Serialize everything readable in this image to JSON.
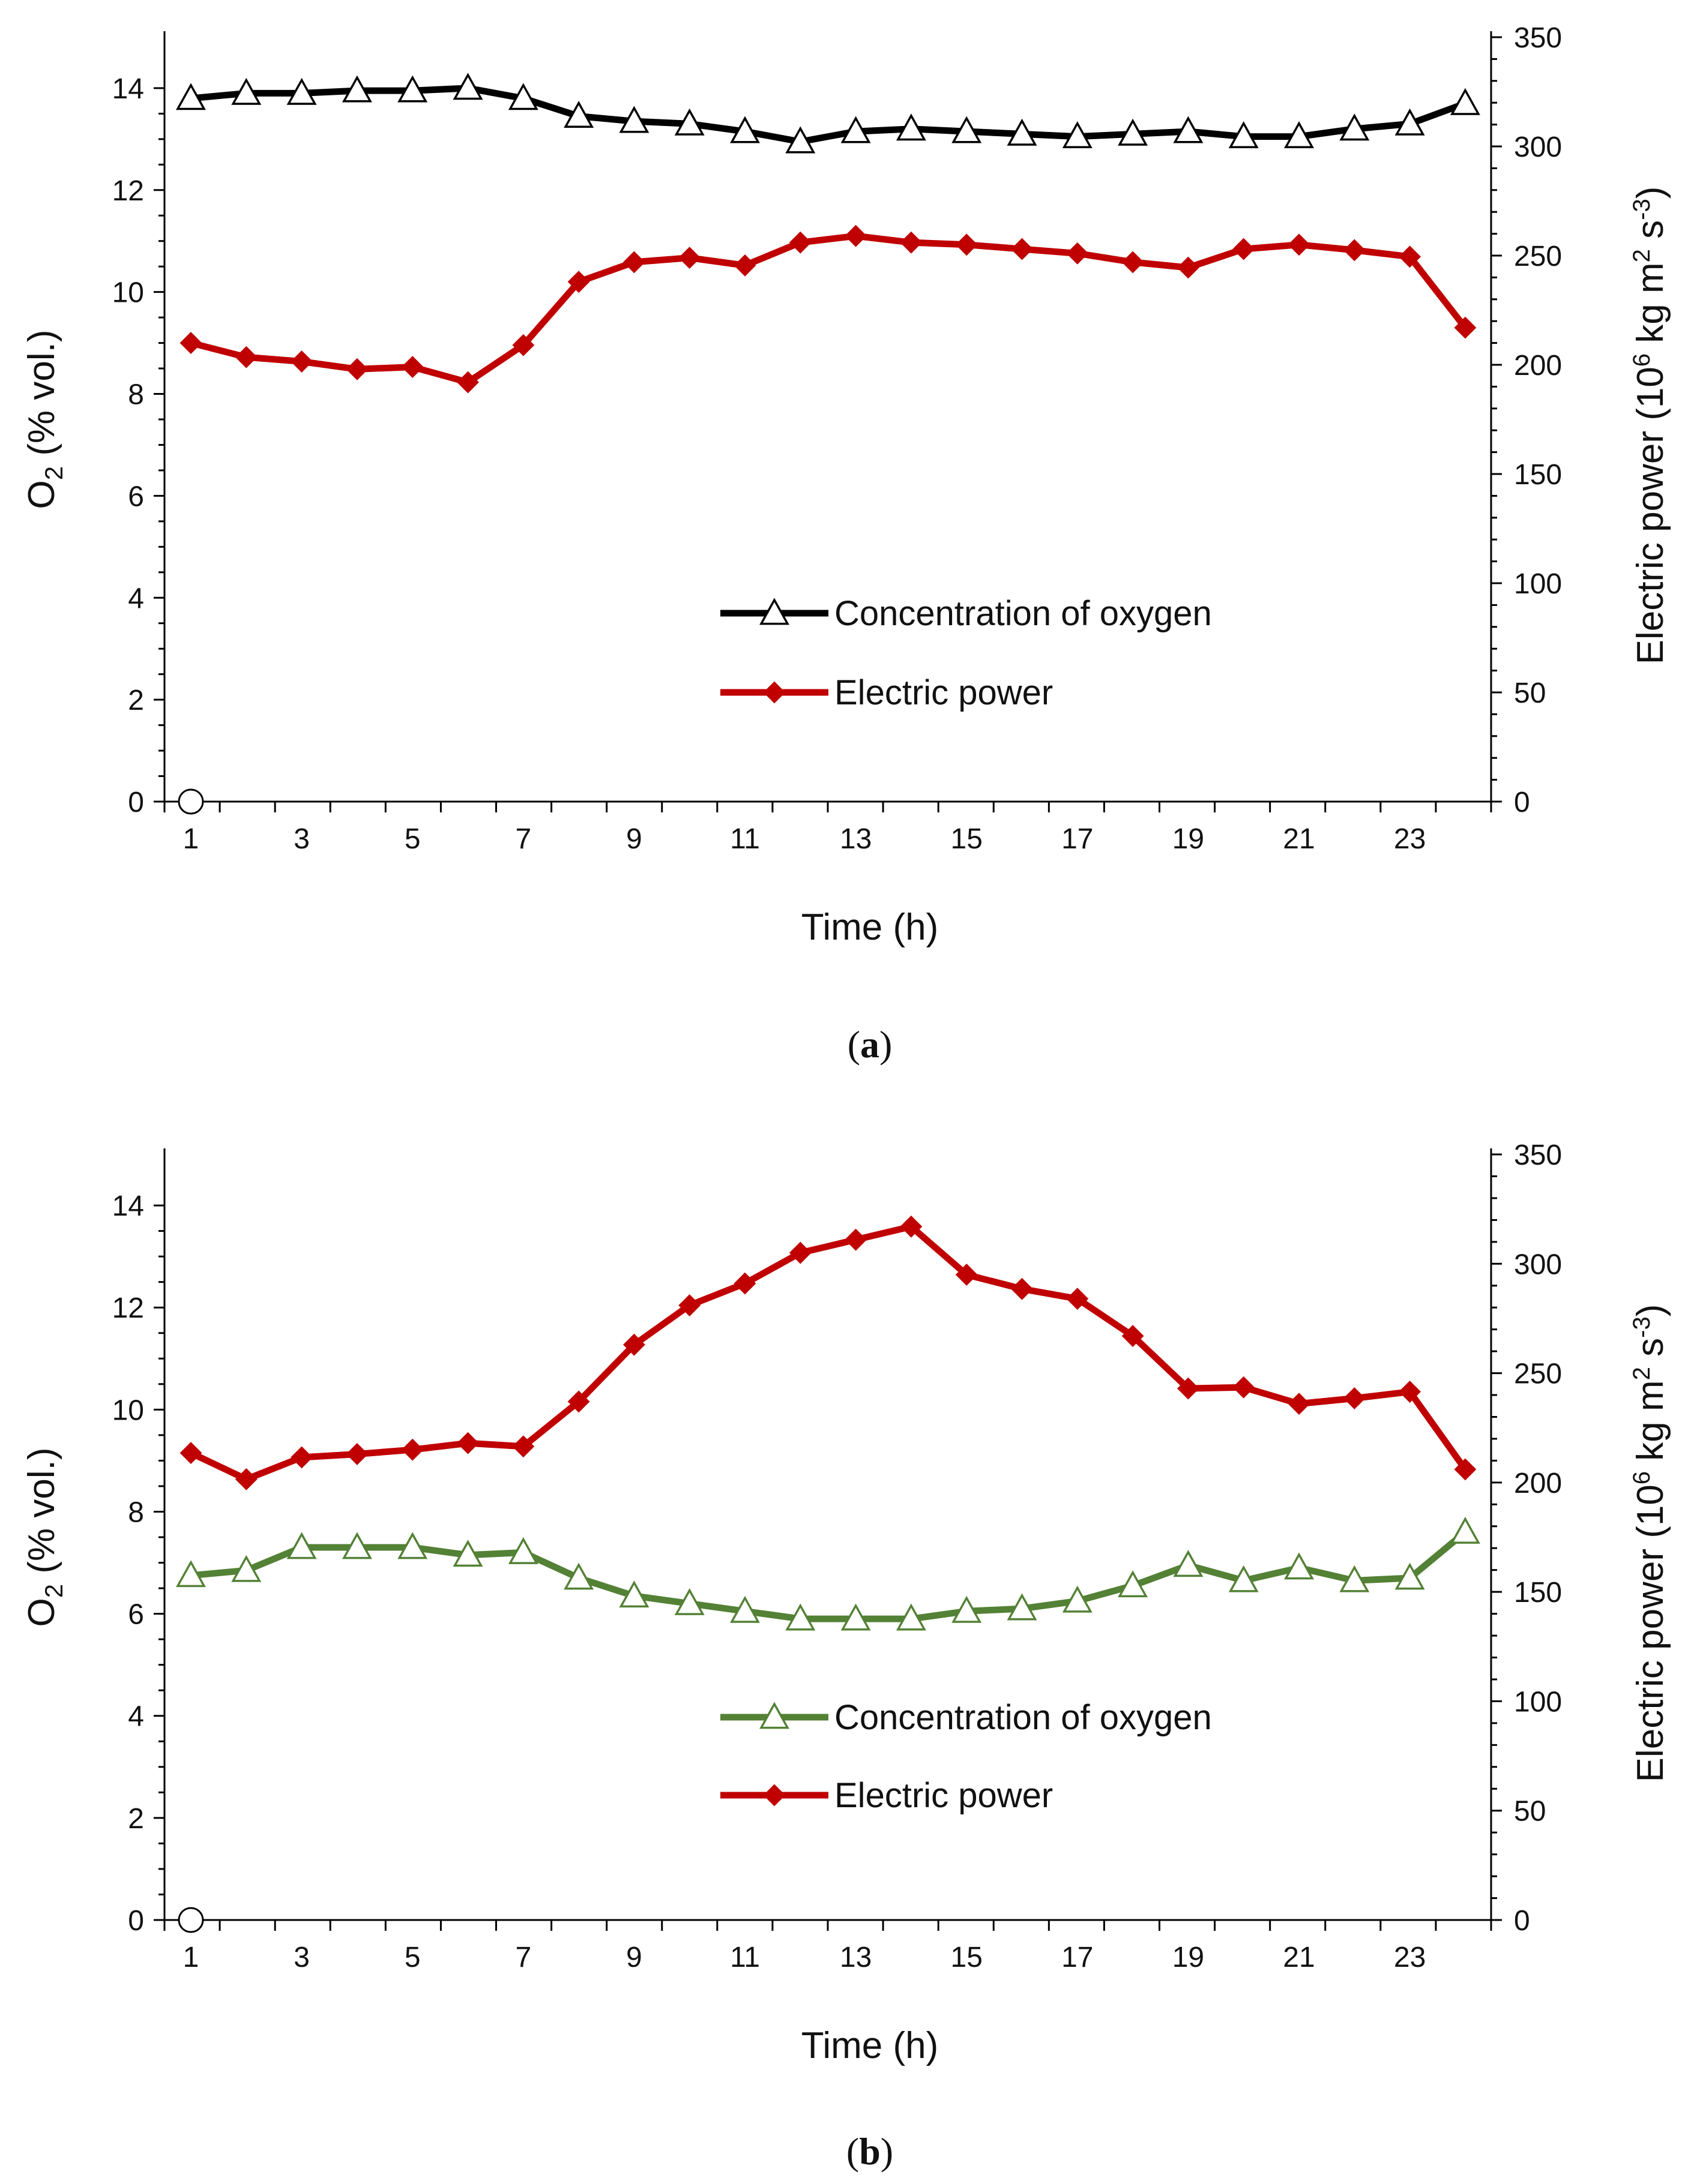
{
  "colors": {
    "axis": "#000000",
    "power": "#c00000",
    "oxygen_a": "#000000",
    "oxygen_b": "#538135",
    "marker_fill": "#ffffff"
  },
  "chart_data": [
    {
      "id": "a",
      "type": "line",
      "caption": {
        "open": "(",
        "letter": "a",
        "close": ")"
      },
      "xlabel": "Time (h)",
      "ylabel": {
        "main": "O",
        "sub": "2",
        "rest": " (% vol.)"
      },
      "y2label": {
        "main": "Electric  power (10",
        "sup1": "6",
        "mid": " kg m",
        "sup2": "2",
        "mid2": " s",
        "sup3": "-3",
        "end": ")"
      },
      "x": [
        1,
        2,
        3,
        4,
        5,
        6,
        7,
        8,
        9,
        10,
        11,
        12,
        13,
        14,
        15,
        16,
        17,
        18,
        19,
        20,
        21,
        22,
        23,
        24
      ],
      "xticks": [
        "1",
        "3",
        "5",
        "7",
        "9",
        "11",
        "13",
        "15",
        "17",
        "19",
        "21",
        "23"
      ],
      "ylim": [
        0,
        15
      ],
      "yticks": [
        "0",
        "2",
        "4",
        "6",
        "8",
        "10",
        "12",
        "14"
      ],
      "y2lim": [
        0,
        350
      ],
      "y2ticks": [
        "0",
        "50",
        "100",
        "150",
        "200",
        "250",
        "300",
        "350"
      ],
      "origin_marker": true,
      "legend_position": "center-right",
      "series": [
        {
          "name": "Concentration of oxygen",
          "axis": "left",
          "marker": "triangle",
          "color_key": "oxygen_a",
          "values": [
            13.8,
            13.9,
            13.9,
            13.95,
            13.95,
            14.0,
            13.8,
            13.45,
            13.35,
            13.3,
            13.15,
            12.95,
            13.15,
            13.2,
            13.15,
            13.1,
            13.05,
            13.1,
            13.15,
            13.05,
            13.05,
            13.2,
            13.3,
            13.7
          ]
        },
        {
          "name": "Electric power",
          "axis": "right",
          "marker": "diamond",
          "color_key": "power",
          "values": [
            210,
            203.5,
            201.5,
            198,
            199,
            192,
            209,
            238,
            247,
            249,
            245.5,
            256,
            259,
            256,
            255,
            253,
            251,
            247,
            244.5,
            253,
            255,
            252.5,
            249.5,
            217
          ]
        }
      ]
    },
    {
      "id": "b",
      "type": "line",
      "caption": {
        "open": "(",
        "letter": "b",
        "close": ")"
      },
      "xlabel": "Time (h)",
      "ylabel": {
        "main": "O",
        "sub": "2",
        "rest": " (% vol.)"
      },
      "y2label": {
        "main": "Electric  power (10",
        "sup1": "6",
        "mid": " kg m",
        "sup2": "2",
        "mid2": " s",
        "sup3": "-3",
        "end": ")"
      },
      "x": [
        1,
        2,
        3,
        4,
        5,
        6,
        7,
        8,
        9,
        10,
        11,
        12,
        13,
        14,
        15,
        16,
        17,
        18,
        19,
        20,
        21,
        22,
        23,
        24
      ],
      "xticks": [
        "1",
        "3",
        "5",
        "7",
        "9",
        "11",
        "13",
        "15",
        "17",
        "19",
        "21",
        "23"
      ],
      "ylim": [
        0,
        15
      ],
      "yticks": [
        "0",
        "2",
        "4",
        "6",
        "8",
        "10",
        "12",
        "14"
      ],
      "y2lim": [
        0,
        350
      ],
      "y2ticks": [
        "0",
        "50",
        "100",
        "150",
        "200",
        "250",
        "300",
        "350"
      ],
      "origin_marker": true,
      "legend_position": "center-right",
      "series": [
        {
          "name": "Concentration of oxygen",
          "axis": "left",
          "marker": "triangle",
          "color_key": "oxygen_b",
          "values": [
            6.75,
            6.85,
            7.3,
            7.3,
            7.3,
            7.15,
            7.2,
            6.7,
            6.35,
            6.2,
            6.05,
            5.9,
            5.9,
            5.9,
            6.05,
            6.1,
            6.25,
            6.55,
            6.95,
            6.65,
            6.9,
            6.65,
            6.7,
            7.6
          ]
        },
        {
          "name": "Electric power",
          "axis": "right",
          "marker": "diamond",
          "color_key": "power",
          "values": [
            213.5,
            201.5,
            211.5,
            213,
            215,
            218,
            216.5,
            237,
            263,
            281,
            291,
            305,
            311,
            317,
            295,
            288.5,
            284,
            267,
            243,
            243.5,
            236,
            238.5,
            241.5,
            206
          ]
        }
      ]
    }
  ]
}
